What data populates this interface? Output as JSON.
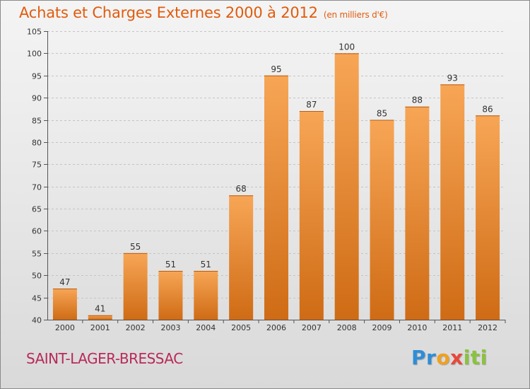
{
  "header": {
    "title": "Achats et Charges Externes 2000 à 2012",
    "subtitle": "(en milliers d'€)"
  },
  "footer": {
    "city": "SAINT-LAGER-BRESSAC",
    "logo": "Proxiti"
  },
  "colors": {
    "title": "#e15b0c",
    "bar_top": "#f7a656",
    "bar_bottom": "#cf6b15",
    "city": "#b82a57"
  },
  "chart_data": {
    "type": "bar",
    "title": "Achats et Charges Externes 2000 à 2012",
    "xlabel": "",
    "ylabel": "",
    "ylim": [
      40,
      105
    ],
    "yticks": [
      40,
      45,
      50,
      55,
      60,
      65,
      70,
      75,
      80,
      85,
      90,
      95,
      100,
      105
    ],
    "grid": true,
    "categories": [
      "2000",
      "2001",
      "2002",
      "2003",
      "2004",
      "2005",
      "2006",
      "2007",
      "2008",
      "2009",
      "2010",
      "2011",
      "2012"
    ],
    "values": [
      47,
      41,
      55,
      51,
      51,
      68,
      95,
      87,
      100,
      85,
      88,
      93,
      86
    ],
    "data_labels": [
      "47",
      "41",
      "55",
      "51",
      "51",
      "68",
      "95",
      "87",
      "100",
      "85",
      "88",
      "93",
      "86"
    ]
  }
}
